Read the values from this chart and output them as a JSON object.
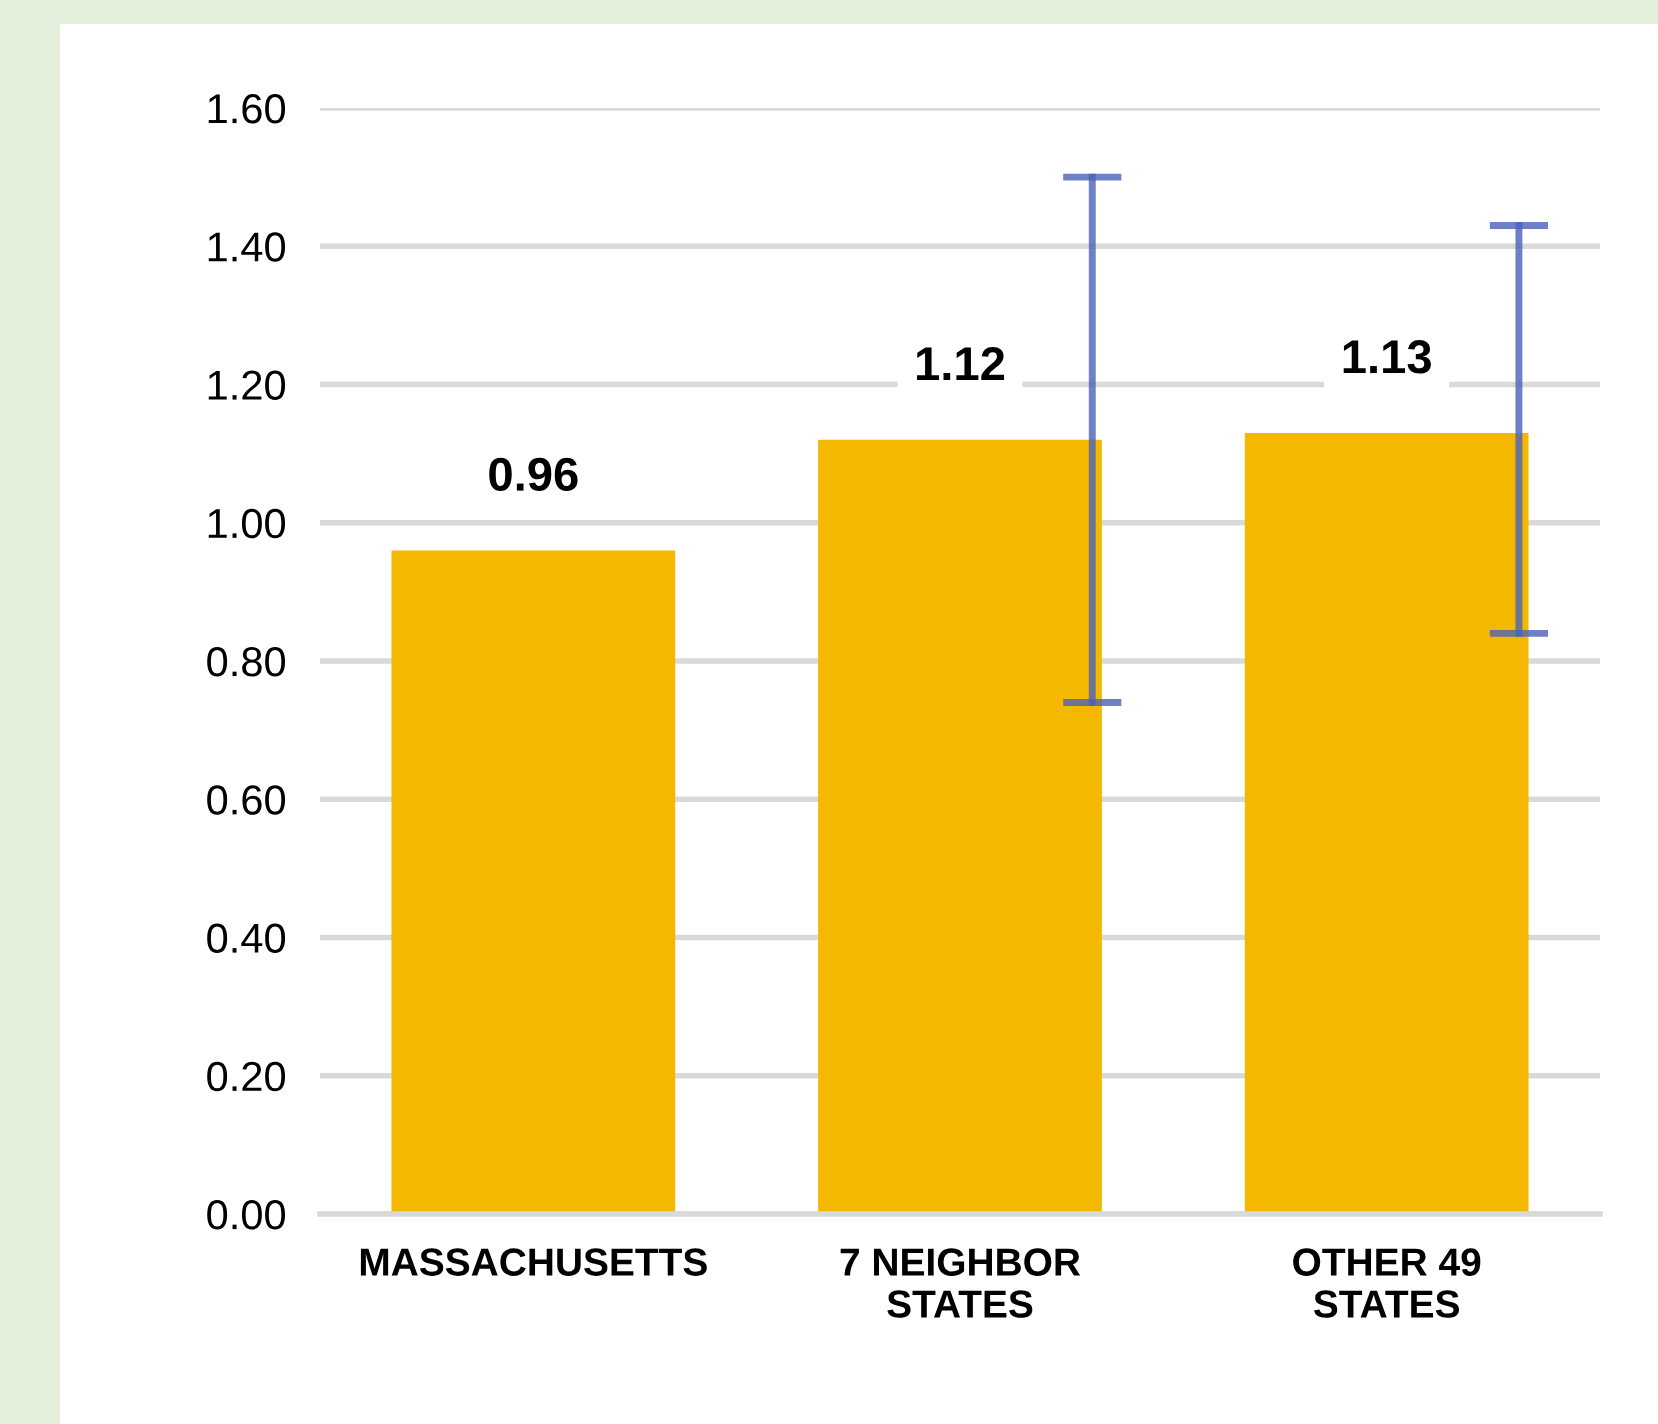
{
  "chart_data": {
    "type": "bar",
    "categories": [
      "MASSACHUSETTS",
      "7 NEIGHBOR\nSTATES",
      "OTHER 49\nSTATES"
    ],
    "values": [
      0.96,
      1.12,
      1.13
    ],
    "errors": [
      null,
      [
        0.74,
        1.5
      ],
      [
        0.84,
        1.43
      ]
    ],
    "color": "#f5b800",
    "ylim": [
      0,
      1.6
    ],
    "yticks": [
      {
        "value": 0,
        "label": "0.00"
      },
      {
        "value": 0.2,
        "label": "0.20"
      },
      {
        "value": 0.4,
        "label": "0.40"
      },
      {
        "value": 0.6,
        "label": "0.60"
      },
      {
        "value": 0.8,
        "label": "0.80"
      },
      {
        "value": 1.0,
        "label": "1.00"
      },
      {
        "value": 1.2,
        "label": "1.20"
      },
      {
        "value": 1.4,
        "label": "1.40"
      },
      {
        "value": 1.6,
        "label": "1.60"
      }
    ],
    "grid": "y",
    "data_labels": true
  }
}
